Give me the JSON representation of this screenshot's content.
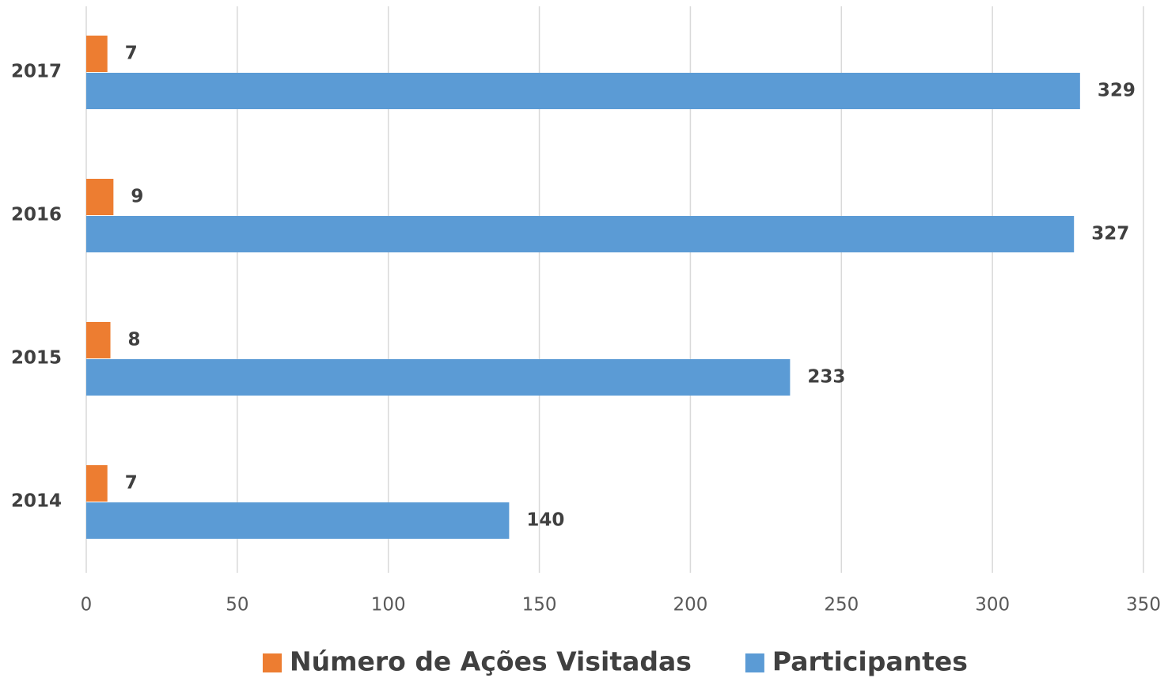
{
  "chart_data": {
    "type": "barh",
    "categories": [
      "2014",
      "2015",
      "2016",
      "2017"
    ],
    "series": [
      {
        "name": "Número de Ações Visitadas",
        "color": "#ed7d31",
        "values": [
          7,
          8,
          9,
          7
        ]
      },
      {
        "name": "Participantes",
        "color": "#5b9bd5",
        "values": [
          140,
          233,
          327,
          329
        ]
      }
    ],
    "xlim": [
      0,
      350
    ],
    "xticks": [
      0,
      50,
      100,
      150,
      200,
      250,
      300,
      350
    ],
    "grid": true,
    "legend": "bottom"
  }
}
